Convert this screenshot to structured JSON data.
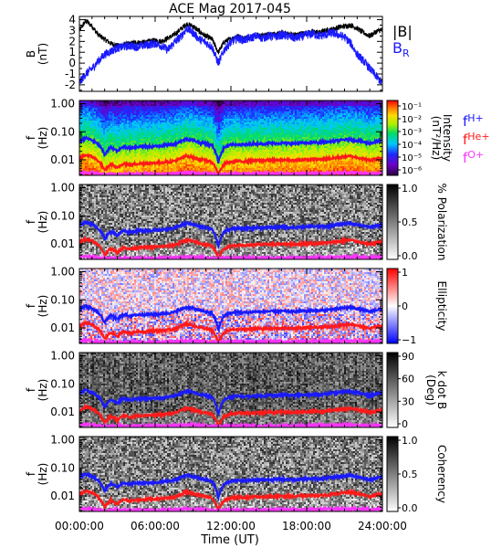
{
  "chart_data": {
    "type": "line",
    "title": "ACE Mag 2017-045",
    "xlabel": "Time (UT)",
    "x_ticks": [
      "00:00:00",
      "06:00:00",
      "12:00:00",
      "18:00:00",
      "24:00:00"
    ],
    "x_range_hours": [
      0,
      24
    ],
    "panels": [
      {
        "kind": "line",
        "ylabel_main": "B",
        "ylabel_unit": "(nT)",
        "ylim": [
          -2.6,
          4.3
        ],
        "y_ticks": [
          "-2",
          "-1",
          "0",
          "1",
          "2",
          "3",
          "4"
        ],
        "legend": [
          {
            "label": "|B|",
            "color": "#000000"
          },
          {
            "label": "B",
            "sub": "R",
            "color": "#1a1aff"
          }
        ],
        "series": [
          {
            "name": "|B|",
            "color": "#000000",
            "x": [
              0,
              0.5,
              1,
              1.5,
              2,
              2.5,
              3,
              3.5,
              4,
              4.5,
              5,
              5.5,
              6,
              6.5,
              7,
              7.5,
              8,
              8.5,
              9,
              9.5,
              10,
              10.5,
              11,
              11.5,
              12,
              12.5,
              13,
              13.5,
              14,
              14.5,
              15,
              15.5,
              16,
              16.5,
              17,
              17.5,
              18,
              18.5,
              19,
              19.5,
              20,
              20.5,
              21,
              21.5,
              22,
              22.5,
              23,
              23.5,
              24
            ],
            "y": [
              3.0,
              3.9,
              3.4,
              2.6,
              2.2,
              1.8,
              1.6,
              1.7,
              1.8,
              1.9,
              1.9,
              2.0,
              2.1,
              2.0,
              2.3,
              2.6,
              3.1,
              3.6,
              3.4,
              2.9,
              2.5,
              2.2,
              1.0,
              2.0,
              2.2,
              2.5,
              2.3,
              2.4,
              2.6,
              2.5,
              2.7,
              2.6,
              2.8,
              2.7,
              2.6,
              2.7,
              2.8,
              2.9,
              2.8,
              3.0,
              3.1,
              3.3,
              3.4,
              3.5,
              3.2,
              2.8,
              2.5,
              2.9,
              3.1
            ]
          },
          {
            "name": "B_R",
            "color": "#1a1aff",
            "x": [
              0,
              0.5,
              1,
              1.5,
              2,
              2.5,
              3,
              3.5,
              4,
              4.5,
              5,
              5.5,
              6,
              6.5,
              7,
              7.5,
              8,
              8.5,
              9,
              9.5,
              10,
              10.5,
              11,
              11.5,
              12,
              12.5,
              13,
              13.5,
              14,
              14.5,
              15,
              15.5,
              16,
              16.5,
              17,
              17.5,
              18,
              18.5,
              19,
              19.5,
              20,
              20.5,
              21,
              21.5,
              22,
              22.5,
              23,
              23.5,
              24
            ],
            "y": [
              -1.8,
              -1.0,
              -0.5,
              0.2,
              0.8,
              1.1,
              1.4,
              1.5,
              1.6,
              1.5,
              1.6,
              1.7,
              1.8,
              1.6,
              1.2,
              1.9,
              2.4,
              3.2,
              2.8,
              2.2,
              1.9,
              1.5,
              0.0,
              1.3,
              1.9,
              2.3,
              2.1,
              2.3,
              2.5,
              2.3,
              2.5,
              2.4,
              2.6,
              2.5,
              2.3,
              2.4,
              2.6,
              2.7,
              2.5,
              2.6,
              2.8,
              2.6,
              2.4,
              1.8,
              0.8,
              0.2,
              -0.5,
              -1.2,
              -1.9
            ]
          }
        ]
      },
      {
        "kind": "spectrogram",
        "ylabel_main": "f",
        "ylabel_unit": "(Hz)",
        "y_ticks": [
          "1.00",
          "0.10",
          "0.01"
        ],
        "colorbar": {
          "type": "rainbow",
          "ticks": [
            "10⁻¹",
            "10⁻²",
            "10⁻³",
            "10⁻⁴",
            "10⁻⁵",
            "10⁻⁶"
          ],
          "label": "Intensity",
          "unit": "(nT²/Hz)"
        },
        "legend": [
          {
            "label": "f",
            "sub": "H+",
            "color": "#1a1aff"
          },
          {
            "label": "f",
            "sub": "He+",
            "color": "#ff1a1a"
          },
          {
            "label": "f",
            "sub": "O+",
            "color": "#ff33ff"
          }
        ]
      },
      {
        "kind": "spectrogram",
        "ylabel_main": "f",
        "ylabel_unit": "(Hz)",
        "y_ticks": [
          "1.00",
          "0.10",
          "0.01"
        ],
        "colorbar": {
          "type": "gray_inv",
          "ticks": [
            "1.0",
            "0.5",
            "0.0"
          ],
          "label": "% Polarization",
          "unit": ""
        }
      },
      {
        "kind": "spectrogram",
        "ylabel_main": "f",
        "ylabel_unit": "(Hz)",
        "y_ticks": [
          "1.00",
          "0.10",
          "0.01"
        ],
        "colorbar": {
          "type": "diverging",
          "ticks": [
            "1",
            "0",
            "−1"
          ],
          "label": "Ellipticity",
          "unit": ""
        }
      },
      {
        "kind": "spectrogram",
        "ylabel_main": "f",
        "ylabel_unit": "(Hz)",
        "y_ticks": [
          "1.00",
          "0.10",
          "0.01"
        ],
        "colorbar": {
          "type": "gray_inv",
          "ticks": [
            "90",
            "60",
            "30",
            "0"
          ],
          "label": "k dot B",
          "unit": "(Deg)"
        }
      },
      {
        "kind": "spectrogram",
        "ylabel_main": "f",
        "ylabel_unit": "(Hz)",
        "y_ticks": [
          "1.00",
          "0.10",
          "0.01"
        ],
        "colorbar": {
          "type": "gray_inv",
          "ticks": [
            "1.0",
            "0.5",
            "0.0"
          ],
          "label": "Coherency",
          "unit": ""
        }
      }
    ],
    "gyro_lines": {
      "x": [
        0,
        0.5,
        1,
        1.5,
        2,
        2.5,
        3,
        3.5,
        4,
        4.5,
        5,
        5.5,
        6,
        6.5,
        7,
        7.5,
        8,
        8.5,
        9,
        9.5,
        10,
        10.5,
        11,
        11.5,
        12,
        12.5,
        13,
        13.5,
        14,
        14.5,
        15,
        15.5,
        16,
        16.5,
        17,
        17.5,
        18,
        18.5,
        19,
        19.5,
        20,
        20.5,
        21,
        21.5,
        22,
        22.5,
        23,
        23.5,
        24
      ],
      "f_H": [
        0.045,
        0.06,
        0.05,
        0.035,
        0.015,
        0.028,
        0.02,
        0.03,
        0.026,
        0.029,
        0.03,
        0.03,
        0.03,
        0.032,
        0.034,
        0.036,
        0.045,
        0.055,
        0.05,
        0.042,
        0.038,
        0.033,
        0.008,
        0.028,
        0.034,
        0.036,
        0.035,
        0.036,
        0.038,
        0.037,
        0.039,
        0.038,
        0.04,
        0.039,
        0.038,
        0.04,
        0.04,
        0.042,
        0.041,
        0.043,
        0.045,
        0.049,
        0.052,
        0.054,
        0.049,
        0.043,
        0.038,
        0.044,
        0.047
      ],
      "f_He": [
        0.011,
        0.015,
        0.013,
        0.009,
        0.004,
        0.007,
        0.005,
        0.0075,
        0.0065,
        0.0072,
        0.0075,
        0.0076,
        0.0078,
        0.008,
        0.0085,
        0.009,
        0.011,
        0.014,
        0.012,
        0.0105,
        0.0095,
        0.0083,
        0.003,
        0.007,
        0.0085,
        0.009,
        0.0088,
        0.009,
        0.0095,
        0.0093,
        0.0098,
        0.0095,
        0.01,
        0.0098,
        0.0095,
        0.01,
        0.0101,
        0.0105,
        0.0103,
        0.0108,
        0.0112,
        0.0122,
        0.013,
        0.0135,
        0.0123,
        0.0108,
        0.0095,
        0.011,
        0.0118
      ],
      "f_O": [
        0.0034,
        0.0036,
        0.0034,
        0.0032,
        0.003,
        0.0031,
        0.003,
        0.0031,
        0.0031,
        0.0031,
        0.0031,
        0.0031,
        0.0031,
        0.0031,
        0.0032,
        0.0032,
        0.0033,
        0.0035,
        0.0034,
        0.0033,
        0.0032,
        0.0031,
        0.003,
        0.0031,
        0.0032,
        0.0032,
        0.0032,
        0.0032,
        0.0032,
        0.0032,
        0.0032,
        0.0032,
        0.0032,
        0.0032,
        0.0032,
        0.0032,
        0.0032,
        0.0033,
        0.0033,
        0.0033,
        0.0033,
        0.0034,
        0.0034,
        0.0035,
        0.0034,
        0.0033,
        0.0032,
        0.0033,
        0.0034
      ]
    }
  }
}
